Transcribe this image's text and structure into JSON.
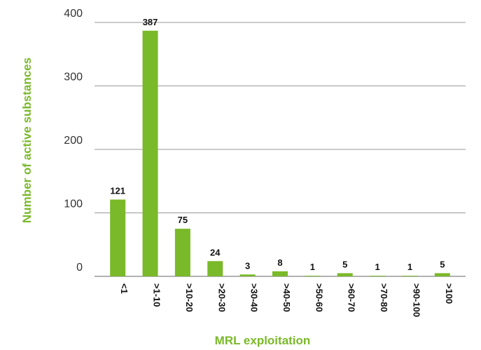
{
  "chart_data": {
    "type": "bar",
    "xlabel": "MRL exploitation",
    "ylabel": "Number of active substances",
    "categories": [
      "<1",
      ">1-10",
      ">10-20",
      ">20-30",
      ">30-40",
      ">40-50",
      ">50-60",
      ">60-70",
      ">70-80",
      ">90-100",
      ">100"
    ],
    "values": [
      121,
      387,
      75,
      24,
      3,
      8,
      1,
      5,
      1,
      1,
      5
    ],
    "color": "#7ab929",
    "ylim": [
      0,
      400
    ],
    "yticks": [
      0,
      100,
      200,
      300,
      400
    ],
    "grid": true
  }
}
